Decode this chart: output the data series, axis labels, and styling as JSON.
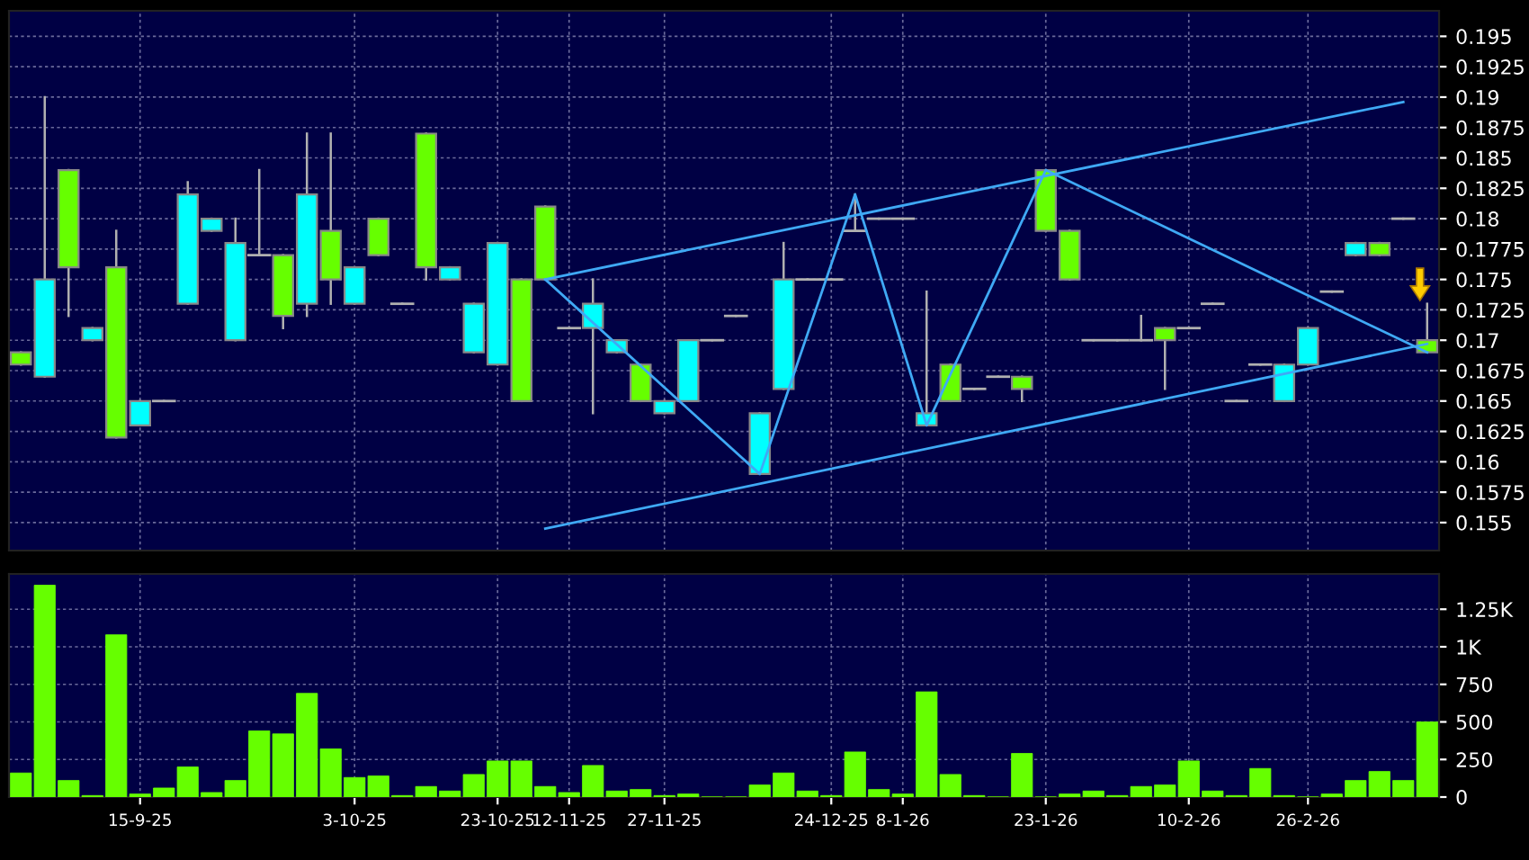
{
  "chart_data": [
    {
      "type": "candlestick",
      "categories": [
        null,
        null,
        null,
        null,
        null,
        null,
        null,
        null,
        null,
        null,
        null,
        null,
        null,
        null,
        null,
        null,
        null,
        null,
        null,
        null,
        null,
        null,
        null,
        null,
        null,
        null,
        null,
        null,
        null,
        null,
        null,
        null,
        null,
        null,
        null,
        null,
        null,
        null,
        null,
        null,
        null,
        null,
        null,
        null,
        null,
        null,
        null,
        null,
        null,
        null,
        null,
        null,
        null,
        null,
        null,
        null,
        null,
        null,
        null,
        null
      ],
      "ohlc": [
        [
          0.169,
          0.169,
          0.168,
          0.168
        ],
        [
          0.167,
          0.19,
          0.167,
          0.175
        ],
        [
          0.184,
          0.184,
          0.172,
          0.176
        ],
        [
          0.17,
          0.171,
          0.17,
          0.171
        ],
        [
          0.176,
          0.179,
          0.162,
          0.162
        ],
        [
          0.163,
          0.165,
          0.163,
          0.165
        ],
        [
          0.165,
          0.165,
          0.165,
          0.165
        ],
        [
          0.173,
          0.183,
          0.173,
          0.182
        ],
        [
          0.179,
          0.18,
          0.179,
          0.18
        ],
        [
          0.17,
          0.18,
          0.17,
          0.178
        ],
        [
          0.177,
          0.184,
          0.177,
          0.177
        ],
        [
          0.177,
          0.177,
          0.171,
          0.172
        ],
        [
          0.173,
          0.187,
          0.172,
          0.182
        ],
        [
          0.179,
          0.187,
          0.173,
          0.175
        ],
        [
          0.173,
          0.176,
          0.173,
          0.176
        ],
        [
          0.18,
          0.18,
          0.177,
          0.177
        ],
        [
          0.173,
          0.173,
          0.173,
          0.173
        ],
        [
          0.187,
          0.187,
          0.175,
          0.176
        ],
        [
          0.175,
          0.176,
          0.175,
          0.176
        ],
        [
          0.169,
          0.173,
          0.169,
          0.173
        ],
        [
          0.168,
          0.178,
          0.168,
          0.178
        ],
        [
          0.175,
          0.175,
          0.165,
          0.165
        ],
        [
          0.181,
          0.181,
          0.175,
          0.175
        ],
        [
          0.171,
          0.171,
          0.171,
          0.171
        ],
        [
          0.171,
          0.175,
          0.164,
          0.173
        ],
        [
          0.169,
          0.17,
          0.169,
          0.17
        ],
        [
          0.168,
          0.168,
          0.165,
          0.165
        ],
        [
          0.164,
          0.165,
          0.164,
          0.165
        ],
        [
          0.165,
          0.17,
          0.165,
          0.17
        ],
        [
          0.17,
          0.17,
          0.17,
          0.17
        ],
        [
          0.172,
          0.172,
          0.172,
          0.172
        ],
        [
          0.159,
          0.164,
          0.159,
          0.164
        ],
        [
          0.166,
          0.178,
          0.166,
          0.175
        ],
        [
          0.175,
          0.175,
          0.175,
          0.175
        ],
        [
          0.175,
          0.175,
          0.175,
          0.175
        ],
        [
          0.179,
          0.182,
          0.179,
          0.179
        ],
        [
          0.18,
          0.18,
          0.18,
          0.18
        ],
        [
          0.18,
          0.18,
          0.18,
          0.18
        ],
        [
          0.163,
          0.174,
          0.163,
          0.164
        ],
        [
          0.168,
          0.168,
          0.165,
          0.165
        ],
        [
          0.166,
          0.166,
          0.166,
          0.166
        ],
        [
          0.167,
          0.167,
          0.167,
          0.167
        ],
        [
          0.167,
          0.167,
          0.165,
          0.166
        ],
        [
          0.184,
          0.184,
          0.179,
          0.179
        ],
        [
          0.179,
          0.179,
          0.175,
          0.175
        ],
        [
          0.17,
          0.17,
          0.17,
          0.17
        ],
        [
          0.17,
          0.17,
          0.17,
          0.17
        ],
        [
          0.17,
          0.172,
          0.17,
          0.17
        ],
        [
          0.171,
          0.171,
          0.166,
          0.17
        ],
        [
          0.171,
          0.171,
          0.171,
          0.171
        ],
        [
          0.173,
          0.173,
          0.173,
          0.173
        ],
        [
          0.165,
          0.165,
          0.165,
          0.165
        ],
        [
          0.168,
          0.168,
          0.168,
          0.168
        ],
        [
          0.165,
          0.168,
          0.165,
          0.168
        ],
        [
          0.168,
          0.171,
          0.168,
          0.171
        ],
        [
          0.174,
          0.174,
          0.174,
          0.174
        ],
        [
          0.177,
          0.178,
          0.177,
          0.178
        ],
        [
          0.178,
          0.178,
          0.177,
          0.177
        ],
        [
          0.18,
          0.18,
          0.18,
          0.18
        ],
        [
          0.17,
          0.173,
          0.169,
          0.169
        ]
      ],
      "colors": [
        "#66ff00",
        "#00ffff",
        "#66ff00",
        "#00ffff",
        "#66ff00",
        "#00ffff",
        "#b0b0b0",
        "#00ffff",
        "#00ffff",
        "#00ffff",
        "#b0b0b0",
        "#66ff00",
        "#00ffff",
        "#66ff00",
        "#00ffff",
        "#66ff00",
        "#b0b0b0",
        "#66ff00",
        "#00ffff",
        "#00ffff",
        "#00ffff",
        "#66ff00",
        "#66ff00",
        "#b0b0b0",
        "#00ffff",
        "#00ffff",
        "#66ff00",
        "#00ffff",
        "#00ffff",
        "#b0b0b0",
        "#b0b0b0",
        "#00ffff",
        "#00ffff",
        "#b0b0b0",
        "#b0b0b0",
        "#b0b0b0",
        "#b0b0b0",
        "#b0b0b0",
        "#00ffff",
        "#66ff00",
        "#b0b0b0",
        "#b0b0b0",
        "#66ff00",
        "#66ff00",
        "#66ff00",
        "#b0b0b0",
        "#b0b0b0",
        "#b0b0b0",
        "#66ff00",
        "#b0b0b0",
        "#b0b0b0",
        "#b0b0b0",
        "#b0b0b0",
        "#00ffff",
        "#00ffff",
        "#b0b0b0",
        "#00ffff",
        "#66ff00",
        "#b0b0b0",
        "#66ff00"
      ],
      "series": [
        {
          "type": "line",
          "color": "#3fa9f5",
          "values": [
            null,
            null,
            null,
            null,
            null,
            null,
            null,
            null,
            null,
            null,
            null,
            null,
            null,
            null,
            null,
            null,
            null,
            null,
            null,
            null,
            null,
            null,
            0.175,
            null,
            null,
            null,
            null,
            null,
            null,
            null,
            null,
            null,
            null,
            null,
            null,
            null,
            null,
            null,
            null,
            null,
            null,
            null,
            null,
            null,
            null,
            null,
            null,
            null,
            null,
            null,
            null,
            null,
            null,
            null,
            null,
            null,
            null,
            null,
            0.1896,
            null
          ]
        },
        {
          "type": "line",
          "color": "#3fa9f5",
          "values": [
            null,
            null,
            null,
            null,
            null,
            null,
            null,
            null,
            null,
            null,
            null,
            null,
            null,
            null,
            null,
            null,
            null,
            null,
            null,
            null,
            null,
            null,
            0.1545,
            null,
            null,
            null,
            null,
            null,
            null,
            null,
            null,
            null,
            null,
            null,
            null,
            null,
            null,
            null,
            null,
            null,
            null,
            null,
            null,
            null,
            null,
            null,
            null,
            null,
            null,
            null,
            null,
            null,
            null,
            null,
            null,
            null,
            null,
            null,
            null,
            0.1697
          ]
        },
        {
          "type": "line",
          "color": "#3fa9f5",
          "values": [
            null,
            null,
            null,
            null,
            null,
            null,
            null,
            null,
            null,
            null,
            null,
            null,
            null,
            null,
            null,
            null,
            null,
            null,
            null,
            null,
            null,
            null,
            0.175,
            null,
            null,
            null,
            null,
            null,
            null,
            null,
            null,
            0.159,
            null,
            null,
            null,
            0.182,
            null,
            null,
            0.163,
            null,
            null,
            null,
            null,
            0.184,
            null,
            null,
            null,
            null,
            null,
            null,
            null,
            null,
            null,
            null,
            null,
            null,
            null,
            null,
            null,
            0.169
          ]
        }
      ],
      "ylim": [
        0.1527,
        0.1971
      ],
      "yticks": [
        0.155,
        0.1575,
        0.16,
        0.1625,
        0.165,
        0.1675,
        0.17,
        0.1725,
        0.175,
        0.1775,
        0.18,
        0.1825,
        0.185,
        0.1875,
        0.19,
        0.1925,
        0.195
      ],
      "grid": true,
      "tick_labels": "y"
    },
    {
      "type": "bar",
      "categories": [
        null,
        null,
        null,
        null,
        null,
        "15-9-25",
        null,
        null,
        null,
        null,
        null,
        null,
        null,
        null,
        "3-10-25",
        null,
        null,
        null,
        null,
        null,
        "23-10-25",
        null,
        null,
        "12-11-25",
        null,
        null,
        null,
        "27-11-25",
        null,
        null,
        null,
        null,
        null,
        null,
        "24-12-25",
        null,
        null,
        "8-1-26",
        null,
        null,
        null,
        null,
        null,
        "23-1-26",
        null,
        null,
        null,
        null,
        null,
        "10-2-26",
        null,
        null,
        null,
        null,
        "26-2-26",
        null,
        null,
        null,
        null,
        null
      ],
      "values": [
        160,
        1410,
        110,
        10,
        1080,
        20,
        60,
        200,
        30,
        110,
        440,
        420,
        690,
        320,
        130,
        140,
        10,
        70,
        40,
        150,
        240,
        240,
        70,
        30,
        210,
        40,
        50,
        10,
        20,
        0,
        0,
        80,
        160,
        40,
        10,
        300,
        50,
        20,
        700,
        150,
        10,
        0,
        290,
        0,
        20,
        40,
        10,
        70,
        80,
        240,
        40,
        10,
        190,
        10,
        0,
        20,
        110,
        170,
        110,
        500
      ],
      "color": "#66ff00",
      "ylim": [
        0,
        1485
      ],
      "yticks": [
        0,
        250,
        500,
        750,
        {
          "value": 1000,
          "label": "1K"
        },
        {
          "value": 1250,
          "label": "1.25K"
        }
      ],
      "grid": true
    }
  ]
}
